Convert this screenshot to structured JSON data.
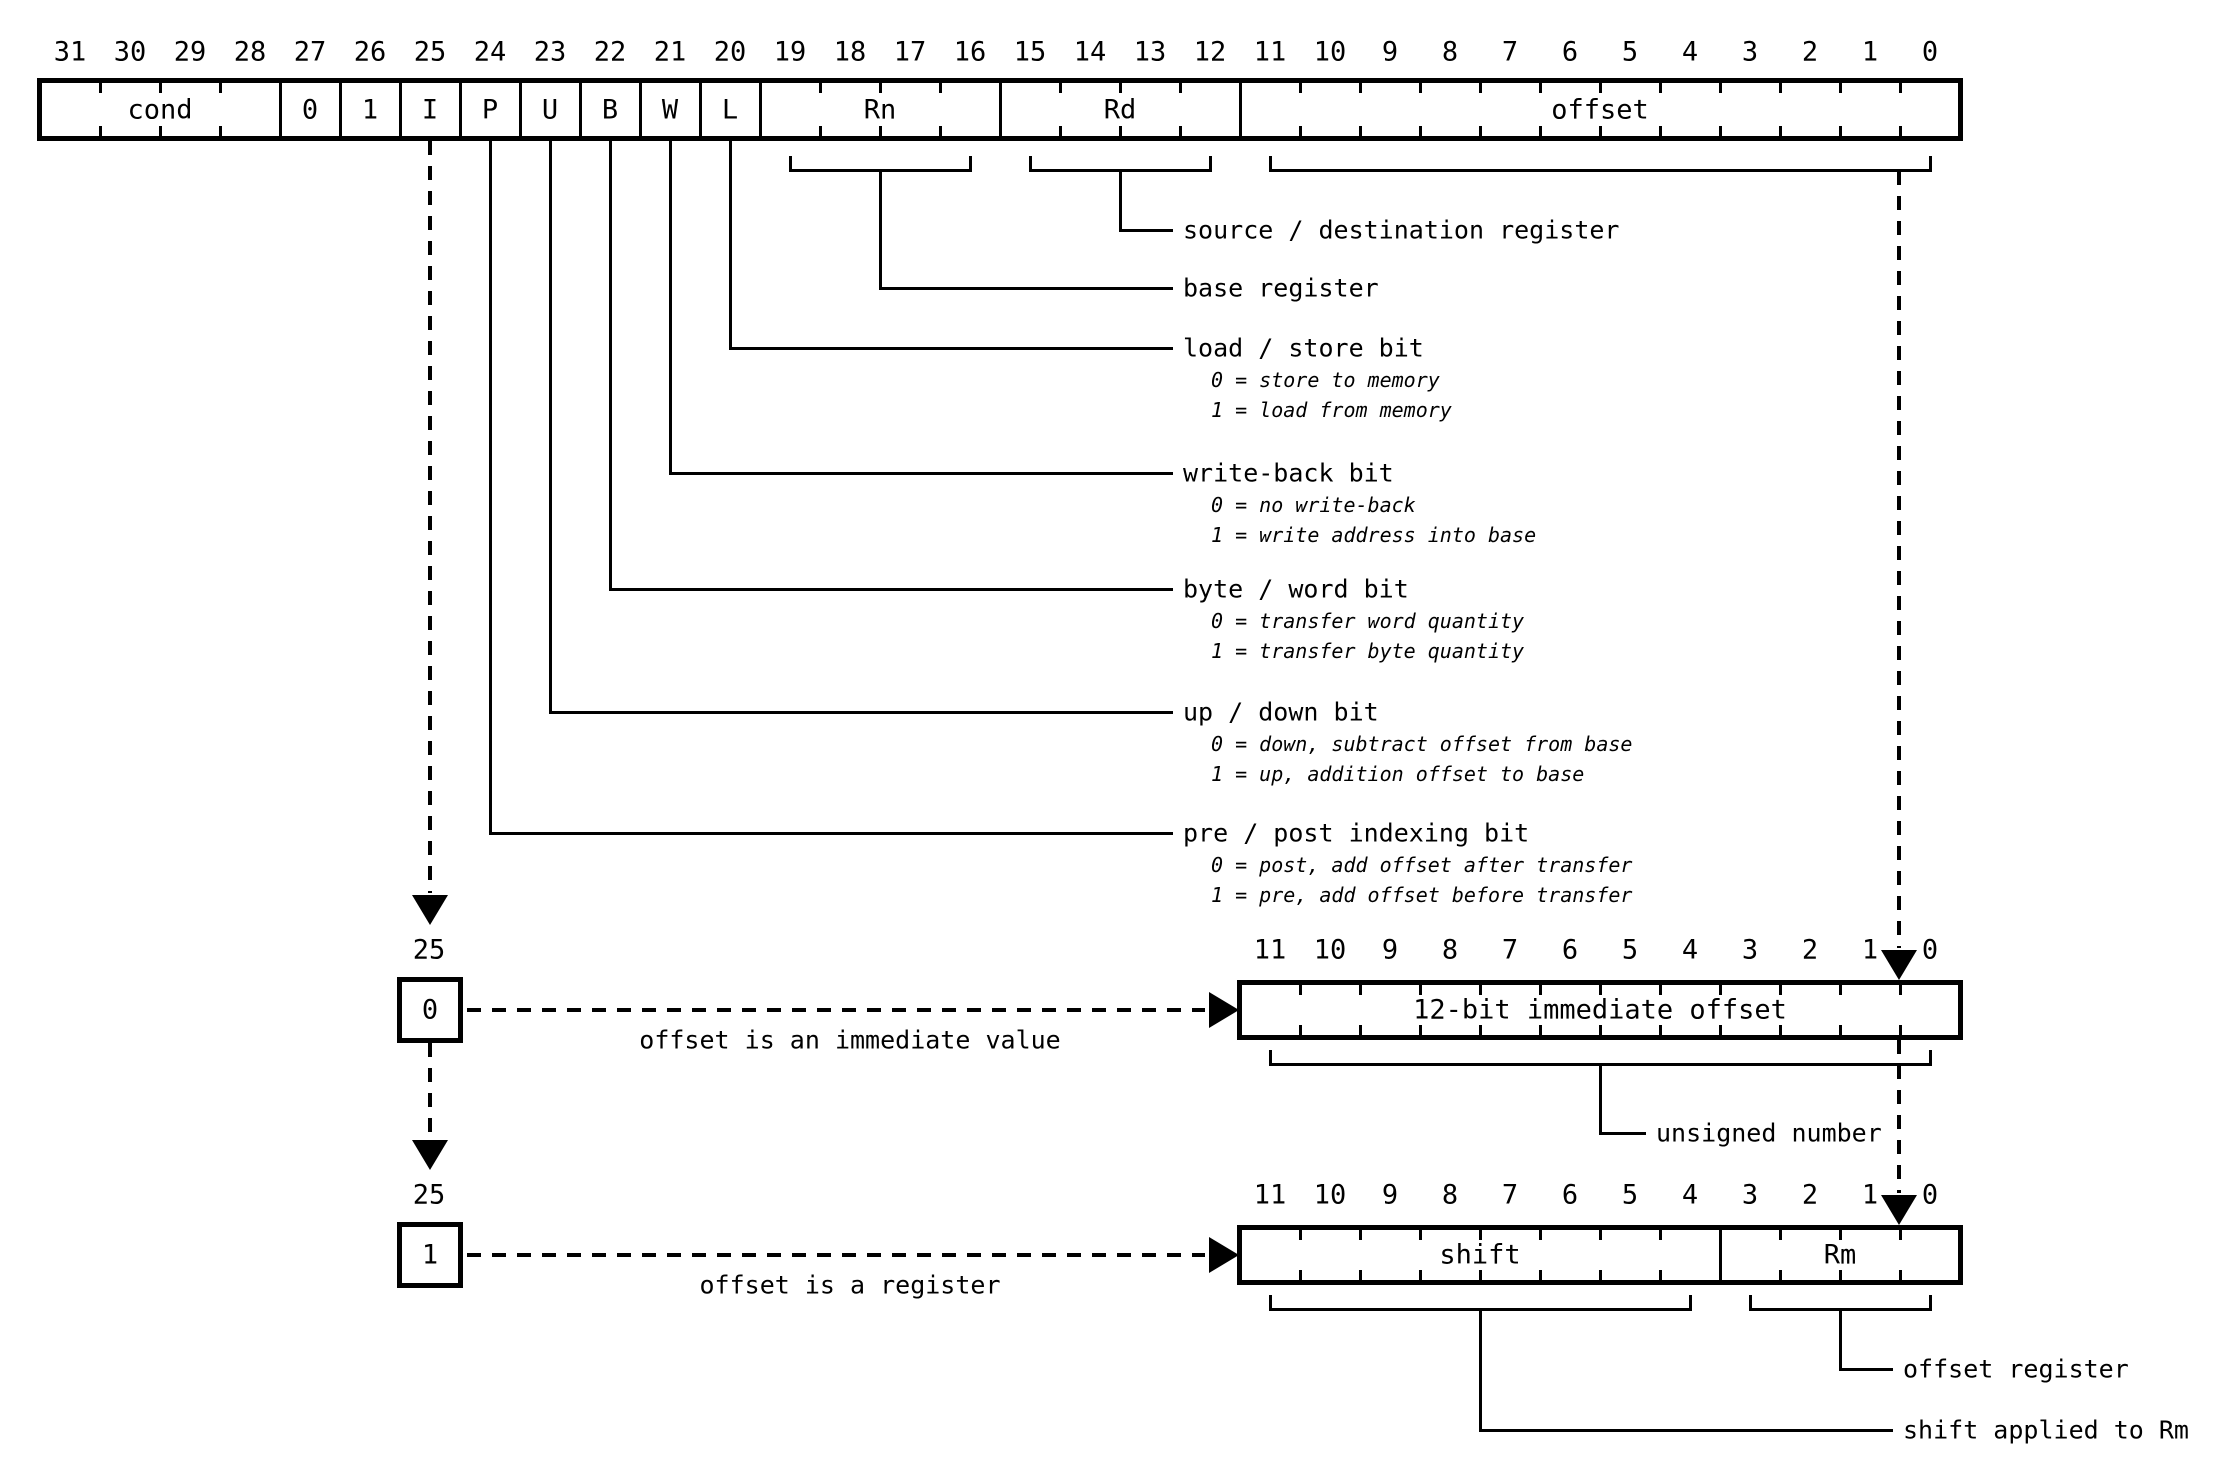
{
  "main_register": {
    "bit_numbers": [
      "31",
      "30",
      "29",
      "28",
      "27",
      "26",
      "25",
      "24",
      "23",
      "22",
      "21",
      "20",
      "19",
      "18",
      "17",
      "16",
      "15",
      "14",
      "13",
      "12",
      "11",
      "10",
      "9",
      "8",
      "7",
      "6",
      "5",
      "4",
      "3",
      "2",
      "1",
      "0"
    ],
    "fields": [
      {
        "label": "cond",
        "high": 31,
        "low": 28
      },
      {
        "label": "0",
        "high": 27,
        "low": 27
      },
      {
        "label": "1",
        "high": 26,
        "low": 26
      },
      {
        "label": "I",
        "high": 25,
        "low": 25
      },
      {
        "label": "P",
        "high": 24,
        "low": 24
      },
      {
        "label": "U",
        "high": 23,
        "low": 23
      },
      {
        "label": "B",
        "high": 22,
        "low": 22
      },
      {
        "label": "W",
        "high": 21,
        "low": 21
      },
      {
        "label": "L",
        "high": 20,
        "low": 20
      },
      {
        "label": "Rn",
        "high": 19,
        "low": 16
      },
      {
        "label": "Rd",
        "high": 15,
        "low": 12
      },
      {
        "label": "offset",
        "high": 11,
        "low": 0
      }
    ]
  },
  "annotations": [
    {
      "field": "Rd",
      "label": "source / destination register",
      "details": []
    },
    {
      "field": "Rn",
      "label": "base register",
      "details": []
    },
    {
      "field": "L",
      "label": "load / store bit",
      "details": [
        "0 = store to memory",
        "1 = load from memory"
      ]
    },
    {
      "field": "W",
      "label": "write-back bit",
      "details": [
        "0 = no write-back",
        "1 = write address into base"
      ]
    },
    {
      "field": "B",
      "label": "byte / word bit",
      "details": [
        "0 = transfer word quantity",
        "1 = transfer byte quantity"
      ]
    },
    {
      "field": "U",
      "label": "up / down bit",
      "details": [
        "0 = down, subtract offset from base",
        "1 = up, addition offset to base"
      ]
    },
    {
      "field": "P",
      "label": "pre / post indexing bit",
      "details": [
        "0 = post, add offset after transfer",
        "1 = pre, add offset before transfer"
      ]
    }
  ],
  "variants": [
    {
      "selector_bit": "25",
      "selector_value": "0",
      "caption": "offset is an immediate value",
      "bit_numbers": [
        "11",
        "10",
        "9",
        "8",
        "7",
        "6",
        "5",
        "4",
        "3",
        "2",
        "1",
        "0"
      ],
      "fields": [
        {
          "label": "12-bit immediate offset",
          "high": 11,
          "low": 0
        }
      ],
      "notes": [
        {
          "label": "unsigned number"
        }
      ]
    },
    {
      "selector_bit": "25",
      "selector_value": "1",
      "caption": "offset is a register",
      "bit_numbers": [
        "11",
        "10",
        "9",
        "8",
        "7",
        "6",
        "5",
        "4",
        "3",
        "2",
        "1",
        "0"
      ],
      "fields": [
        {
          "label": "shift",
          "high": 11,
          "low": 4
        },
        {
          "label": "Rm",
          "high": 3,
          "low": 0
        }
      ],
      "notes": [
        {
          "label": "offset register"
        },
        {
          "label": "shift applied to Rm"
        }
      ]
    }
  ],
  "colors": {
    "ink": "#000000",
    "background": "#ffffff"
  }
}
